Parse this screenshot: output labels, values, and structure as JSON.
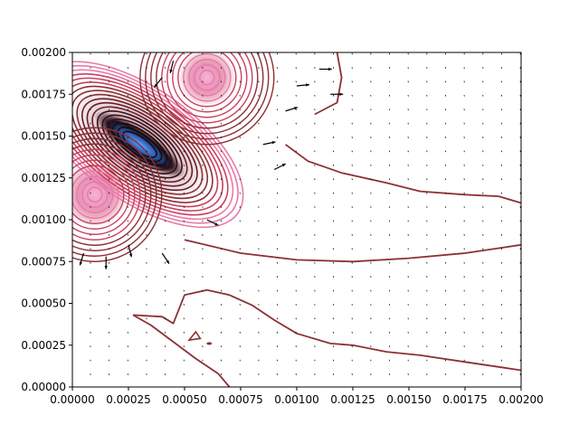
{
  "chart_data": {
    "type": "contour",
    "subtype": "contour-with-quiver",
    "title": "",
    "xlabel": "",
    "ylabel": "",
    "xlim": [
      0.0,
      0.002
    ],
    "ylim": [
      0.0,
      0.002
    ],
    "x_ticks": [
      0.0,
      0.00025,
      0.0005,
      0.00075,
      0.001,
      0.00125,
      0.0015,
      0.00175,
      0.002
    ],
    "x_tick_labels": [
      "0.00000",
      "0.00025",
      "0.00050",
      "0.00075",
      "0.00100",
      "0.00125",
      "0.00150",
      "0.00175",
      "0.00200"
    ],
    "y_ticks": [
      0.0,
      0.00025,
      0.0005,
      0.00075,
      0.001,
      0.00125,
      0.0015,
      0.00175,
      0.002
    ],
    "y_tick_labels": [
      "0.00000",
      "0.00025",
      "0.00050",
      "0.00075",
      "0.00100",
      "0.00125",
      "0.00150",
      "0.00175",
      "0.00200"
    ],
    "grid": false,
    "legend": "none",
    "colors": {
      "outer_contour": "#8c3035",
      "mid_contour": "#c9405e",
      "pink_contour": "#e87aa8",
      "dark_contour": "#1a0a0e",
      "core_blue": "#3a7bd5",
      "arrows": "#000000"
    },
    "contour_lines": [
      {
        "name": "upper-far-contour",
        "points": [
          [
            0.00108,
            0.00163
          ],
          [
            0.00118,
            0.0017
          ],
          [
            0.0012,
            0.00185
          ],
          [
            0.00118,
            0.002
          ]
        ]
      },
      {
        "name": "upper-mid-contour",
        "points": [
          [
            0.00095,
            0.00145
          ],
          [
            0.00105,
            0.00135
          ],
          [
            0.0012,
            0.00128
          ],
          [
            0.0014,
            0.00122
          ],
          [
            0.00155,
            0.00117
          ],
          [
            0.00175,
            0.00115
          ],
          [
            0.0019,
            0.00114
          ],
          [
            0.002,
            0.0011
          ]
        ]
      },
      {
        "name": "lower-mid-contour",
        "points": [
          [
            0.0005,
            0.00088
          ],
          [
            0.00075,
            0.0008
          ],
          [
            0.001,
            0.00076
          ],
          [
            0.00125,
            0.00075
          ],
          [
            0.0015,
            0.00077
          ],
          [
            0.00175,
            0.0008
          ],
          [
            0.0019,
            0.00083
          ],
          [
            0.002,
            0.00085
          ]
        ]
      },
      {
        "name": "lower-contour",
        "points": [
          [
            0.00027,
            0.00043
          ],
          [
            0.0004,
            0.00042
          ],
          [
            0.00045,
            0.00038
          ],
          [
            0.0005,
            0.00055
          ],
          [
            0.0006,
            0.00058
          ],
          [
            0.0007,
            0.00055
          ],
          [
            0.0008,
            0.00049
          ],
          [
            0.0009,
            0.0004
          ],
          [
            0.001,
            0.00032
          ],
          [
            0.00115,
            0.00026
          ],
          [
            0.00125,
            0.00025
          ],
          [
            0.0014,
            0.00021
          ],
          [
            0.00155,
            0.00019
          ],
          [
            0.00175,
            0.00015
          ],
          [
            0.0019,
            0.00012
          ],
          [
            0.002,
            0.0001
          ]
        ]
      },
      {
        "name": "lower-left-contour",
        "points": [
          [
            0.00027,
            0.00043
          ],
          [
            0.00035,
            0.00037
          ],
          [
            0.00045,
            0.00027
          ],
          [
            0.00055,
            0.00017
          ],
          [
            0.00065,
            8e-05
          ],
          [
            0.0007,
            0.0
          ]
        ]
      }
    ],
    "hotspots": [
      {
        "name": "core-blue-band",
        "x": 0.0003,
        "y": 0.00145,
        "level": 1.0
      },
      {
        "name": "pink-lobe-left",
        "x": 0.0001,
        "y": 0.00115,
        "level": 0.8
      },
      {
        "name": "pink-lobe-top",
        "x": 0.0006,
        "y": 0.00185,
        "level": 0.7
      }
    ],
    "quiver": {
      "x_range": [
        0.0,
        0.002
      ],
      "y_range": [
        0.0,
        0.002
      ],
      "spacing": 8.33e-05,
      "strong_arrows": [
        {
          "x": 5e-05,
          "y": 0.0008,
          "u": -0.3,
          "v": -1.0
        },
        {
          "x": 0.00015,
          "y": 0.00078,
          "u": 0.0,
          "v": -1.0
        },
        {
          "x": 0.00025,
          "y": 0.00085,
          "u": 0.2,
          "v": -0.8
        },
        {
          "x": 0.0004,
          "y": 0.0008,
          "u": 0.4,
          "v": -0.6
        },
        {
          "x": 0.0006,
          "y": 0.001,
          "u": 0.8,
          "v": -0.4
        },
        {
          "x": 0.00085,
          "y": 0.00145,
          "u": 1.0,
          "v": 0.2
        },
        {
          "x": 0.00095,
          "y": 0.00165,
          "u": 1.0,
          "v": 0.3
        },
        {
          "x": 0.0011,
          "y": 0.0019,
          "u": 1.0,
          "v": 0.0
        },
        {
          "x": 0.001,
          "y": 0.0018,
          "u": 1.0,
          "v": 0.1
        },
        {
          "x": 0.0009,
          "y": 0.0013,
          "u": 0.8,
          "v": 0.4
        },
        {
          "x": 0.00115,
          "y": 0.00175,
          "u": 0.9,
          "v": 0.0
        },
        {
          "x": 0.0004,
          "y": 0.00185,
          "u": -0.4,
          "v": -0.5
        },
        {
          "x": 0.00045,
          "y": 0.00195,
          "u": -0.2,
          "v": -0.8
        }
      ]
    }
  }
}
